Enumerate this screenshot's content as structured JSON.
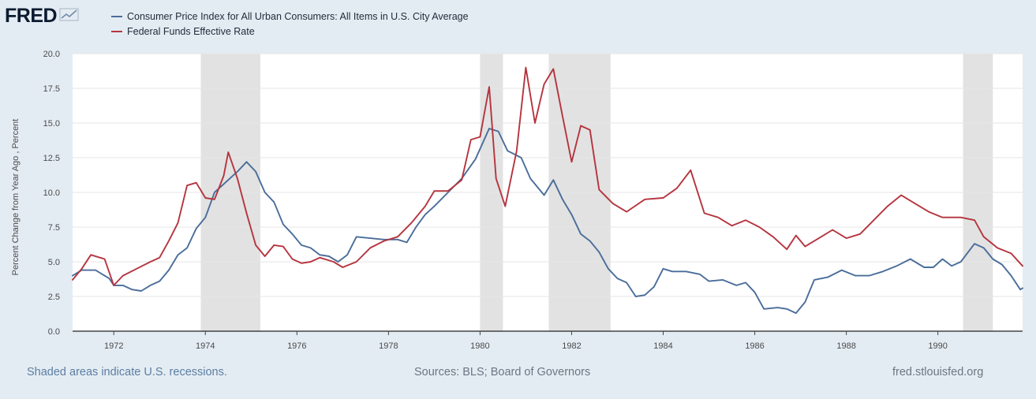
{
  "header": {
    "logo_text": "FRED",
    "logo_icon": "fred-chart-icon"
  },
  "footer": {
    "left": "Shaded areas indicate U.S. recessions.",
    "middle": "Sources: BLS; Board of Governors",
    "right": "fred.stlouisfed.org"
  },
  "chart_data": {
    "type": "line",
    "ylabel": "Percent Change from Year Ago , Percent",
    "xlim": [
      1971.1,
      1991.85
    ],
    "ylim": [
      0,
      20
    ],
    "yticks": [
      "0.0",
      "2.5",
      "5.0",
      "7.5",
      "10.0",
      "12.5",
      "15.0",
      "17.5",
      "20.0"
    ],
    "xticks": [
      "1972",
      "1974",
      "1976",
      "1978",
      "1980",
      "1982",
      "1984",
      "1986",
      "1988",
      "1990"
    ],
    "grid": "horizontal",
    "legend_position": "top-left",
    "recessions": [
      [
        1973.9,
        1975.2
      ],
      [
        1980.0,
        1980.5
      ],
      [
        1981.5,
        1982.85
      ],
      [
        1990.55,
        1991.2
      ]
    ],
    "series": [
      {
        "name": "Consumer Price Index for All Urban Consumers: All Items in U.S. City Average",
        "color": "#4a6d9a",
        "points": [
          [
            1971.1,
            4.0
          ],
          [
            1971.3,
            4.4
          ],
          [
            1971.6,
            4.4
          ],
          [
            1971.9,
            3.8
          ],
          [
            1972.0,
            3.3
          ],
          [
            1972.2,
            3.3
          ],
          [
            1972.4,
            3.0
          ],
          [
            1972.6,
            2.9
          ],
          [
            1972.8,
            3.3
          ],
          [
            1973.0,
            3.6
          ],
          [
            1973.2,
            4.4
          ],
          [
            1973.4,
            5.5
          ],
          [
            1973.6,
            6.0
          ],
          [
            1973.8,
            7.4
          ],
          [
            1974.0,
            8.2
          ],
          [
            1974.2,
            10.0
          ],
          [
            1974.5,
            10.9
          ],
          [
            1974.7,
            11.5
          ],
          [
            1974.9,
            12.2
          ],
          [
            1975.1,
            11.5
          ],
          [
            1975.3,
            10.0
          ],
          [
            1975.5,
            9.3
          ],
          [
            1975.7,
            7.7
          ],
          [
            1975.9,
            7.0
          ],
          [
            1976.1,
            6.2
          ],
          [
            1976.3,
            6.0
          ],
          [
            1976.5,
            5.5
          ],
          [
            1976.7,
            5.4
          ],
          [
            1976.9,
            5.0
          ],
          [
            1977.1,
            5.5
          ],
          [
            1977.3,
            6.8
          ],
          [
            1977.6,
            6.7
          ],
          [
            1977.9,
            6.6
          ],
          [
            1978.2,
            6.6
          ],
          [
            1978.4,
            6.4
          ],
          [
            1978.6,
            7.5
          ],
          [
            1978.8,
            8.4
          ],
          [
            1979.0,
            9.0
          ],
          [
            1979.3,
            10.0
          ],
          [
            1979.6,
            11.0
          ],
          [
            1979.9,
            12.4
          ],
          [
            1980.2,
            14.6
          ],
          [
            1980.4,
            14.4
          ],
          [
            1980.6,
            13.0
          ],
          [
            1980.9,
            12.5
          ],
          [
            1981.1,
            11.0
          ],
          [
            1981.4,
            9.8
          ],
          [
            1981.6,
            10.9
          ],
          [
            1981.8,
            9.5
          ],
          [
            1982.0,
            8.4
          ],
          [
            1982.2,
            7.0
          ],
          [
            1982.4,
            6.5
          ],
          [
            1982.6,
            5.7
          ],
          [
            1982.8,
            4.5
          ],
          [
            1983.0,
            3.8
          ],
          [
            1983.2,
            3.5
          ],
          [
            1983.4,
            2.5
          ],
          [
            1983.6,
            2.6
          ],
          [
            1983.8,
            3.2
          ],
          [
            1984.0,
            4.5
          ],
          [
            1984.2,
            4.3
          ],
          [
            1984.5,
            4.3
          ],
          [
            1984.8,
            4.1
          ],
          [
            1985.0,
            3.6
          ],
          [
            1985.3,
            3.7
          ],
          [
            1985.6,
            3.3
          ],
          [
            1985.8,
            3.5
          ],
          [
            1986.0,
            2.8
          ],
          [
            1986.2,
            1.6
          ],
          [
            1986.5,
            1.7
          ],
          [
            1986.7,
            1.6
          ],
          [
            1986.9,
            1.3
          ],
          [
            1987.1,
            2.1
          ],
          [
            1987.3,
            3.7
          ],
          [
            1987.6,
            3.9
          ],
          [
            1987.9,
            4.4
          ],
          [
            1988.2,
            4.0
          ],
          [
            1988.5,
            4.0
          ],
          [
            1988.8,
            4.3
          ],
          [
            1989.1,
            4.7
          ],
          [
            1989.4,
            5.2
          ],
          [
            1989.7,
            4.6
          ],
          [
            1989.9,
            4.6
          ],
          [
            1990.1,
            5.2
          ],
          [
            1990.3,
            4.7
          ],
          [
            1990.5,
            5.0
          ],
          [
            1990.8,
            6.3
          ],
          [
            1991.0,
            6.0
          ],
          [
            1991.2,
            5.2
          ],
          [
            1991.4,
            4.8
          ],
          [
            1991.6,
            4.0
          ],
          [
            1991.8,
            3.0
          ],
          [
            1991.85,
            3.1
          ]
        ]
      },
      {
        "name": "Federal Funds Effective Rate",
        "color": "#b5343e",
        "points": [
          [
            1971.1,
            3.7
          ],
          [
            1971.3,
            4.5
          ],
          [
            1971.5,
            5.5
          ],
          [
            1971.8,
            5.2
          ],
          [
            1972.0,
            3.3
          ],
          [
            1972.2,
            4.0
          ],
          [
            1972.5,
            4.5
          ],
          [
            1972.8,
            5.0
          ],
          [
            1973.0,
            5.3
          ],
          [
            1973.2,
            6.5
          ],
          [
            1973.4,
            7.8
          ],
          [
            1973.6,
            10.5
          ],
          [
            1973.8,
            10.7
          ],
          [
            1974.0,
            9.6
          ],
          [
            1974.2,
            9.5
          ],
          [
            1974.4,
            11.2
          ],
          [
            1974.5,
            12.9
          ],
          [
            1974.7,
            11.0
          ],
          [
            1974.9,
            8.5
          ],
          [
            1975.1,
            6.2
          ],
          [
            1975.3,
            5.4
          ],
          [
            1975.5,
            6.2
          ],
          [
            1975.7,
            6.1
          ],
          [
            1975.9,
            5.2
          ],
          [
            1976.1,
            4.9
          ],
          [
            1976.3,
            5.0
          ],
          [
            1976.5,
            5.3
          ],
          [
            1976.8,
            5.0
          ],
          [
            1977.0,
            4.6
          ],
          [
            1977.3,
            5.0
          ],
          [
            1977.6,
            6.0
          ],
          [
            1977.9,
            6.5
          ],
          [
            1978.2,
            6.8
          ],
          [
            1978.5,
            7.8
          ],
          [
            1978.8,
            9.0
          ],
          [
            1979.0,
            10.1
          ],
          [
            1979.3,
            10.1
          ],
          [
            1979.6,
            10.9
          ],
          [
            1979.8,
            13.8
          ],
          [
            1980.0,
            14.0
          ],
          [
            1980.2,
            17.6
          ],
          [
            1980.35,
            11.0
          ],
          [
            1980.55,
            9.0
          ],
          [
            1980.8,
            13.0
          ],
          [
            1981.0,
            19.0
          ],
          [
            1981.2,
            15.0
          ],
          [
            1981.4,
            17.8
          ],
          [
            1981.6,
            18.9
          ],
          [
            1981.8,
            15.5
          ],
          [
            1982.0,
            12.2
          ],
          [
            1982.2,
            14.8
          ],
          [
            1982.4,
            14.5
          ],
          [
            1982.6,
            10.2
          ],
          [
            1982.9,
            9.2
          ],
          [
            1983.2,
            8.6
          ],
          [
            1983.6,
            9.5
          ],
          [
            1984.0,
            9.6
          ],
          [
            1984.3,
            10.3
          ],
          [
            1984.6,
            11.6
          ],
          [
            1984.9,
            8.5
          ],
          [
            1985.2,
            8.2
          ],
          [
            1985.5,
            7.6
          ],
          [
            1985.8,
            8.0
          ],
          [
            1986.1,
            7.5
          ],
          [
            1986.4,
            6.8
          ],
          [
            1986.7,
            5.9
          ],
          [
            1986.9,
            6.9
          ],
          [
            1987.1,
            6.1
          ],
          [
            1987.4,
            6.7
          ],
          [
            1987.7,
            7.3
          ],
          [
            1988.0,
            6.7
          ],
          [
            1988.3,
            7.0
          ],
          [
            1988.6,
            8.0
          ],
          [
            1988.9,
            9.0
          ],
          [
            1989.2,
            9.8
          ],
          [
            1989.5,
            9.2
          ],
          [
            1989.8,
            8.6
          ],
          [
            1990.1,
            8.2
          ],
          [
            1990.5,
            8.2
          ],
          [
            1990.8,
            8.0
          ],
          [
            1991.0,
            6.8
          ],
          [
            1991.3,
            6.0
          ],
          [
            1991.6,
            5.6
          ],
          [
            1991.85,
            4.7
          ]
        ]
      }
    ]
  }
}
